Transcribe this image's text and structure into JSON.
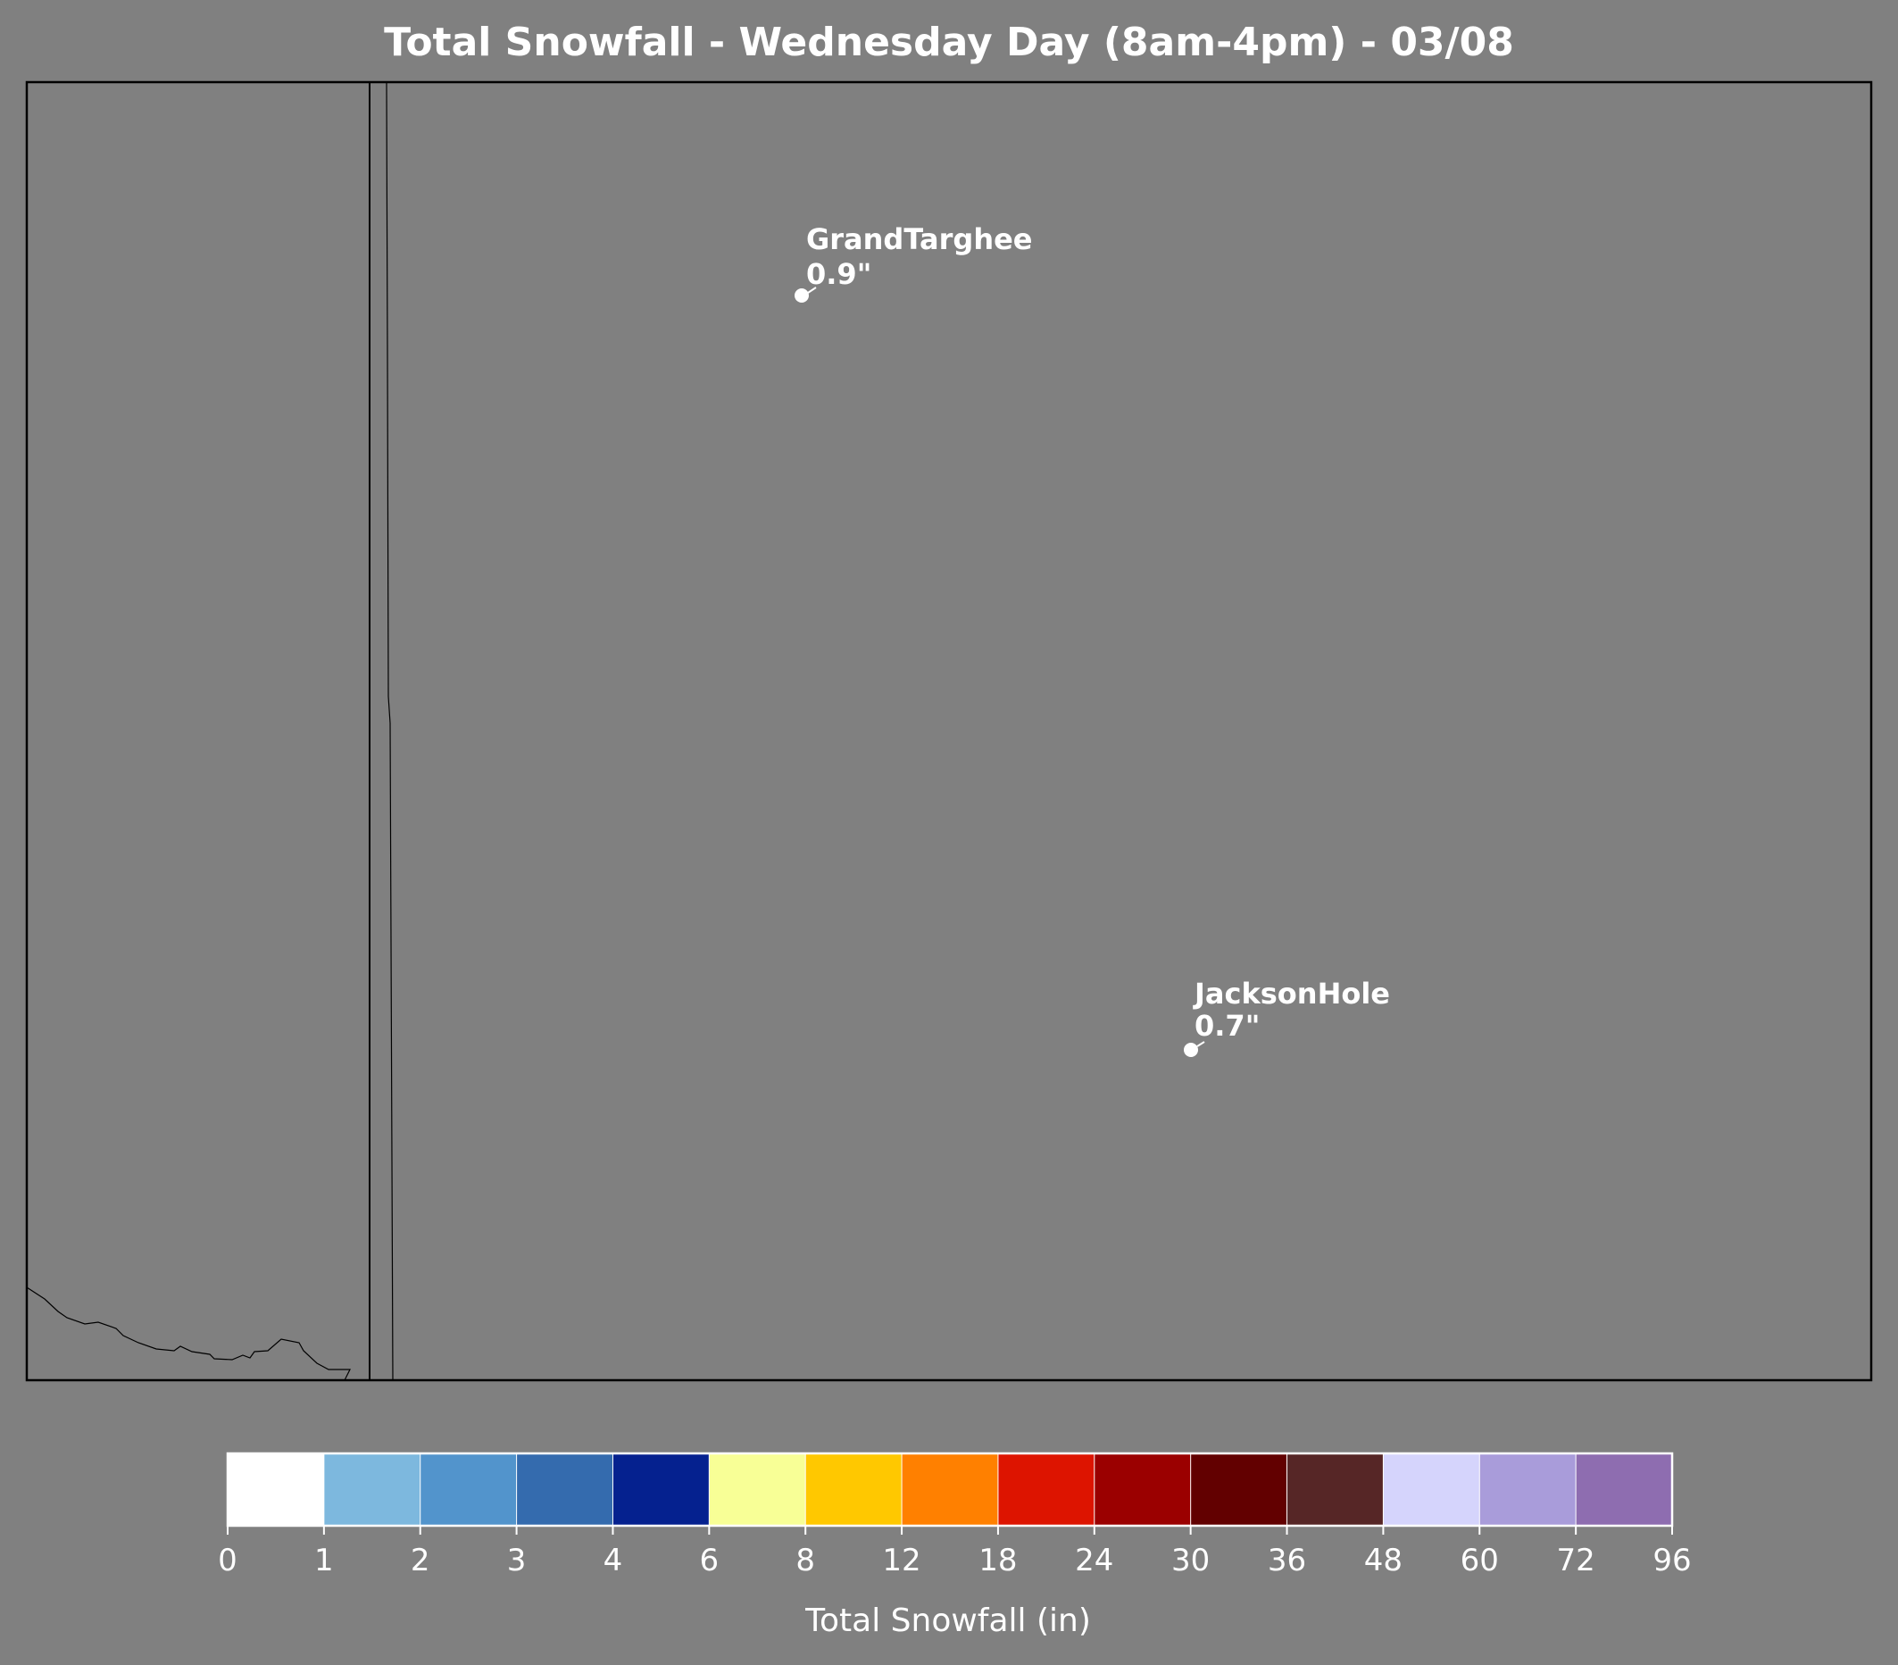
{
  "title": "Total Snowfall - Wednesday Day (8am-4pm) - 03/08",
  "map": {
    "background_color": "#808080",
    "stations": [
      {
        "name": "GrandTarghee",
        "value": "0.9\"",
        "snowfall_in": 0.9
      },
      {
        "name": "JacksonHole",
        "value": "0.7\"",
        "snowfall_in": 0.7
      }
    ]
  },
  "colorbar": {
    "label": "Total Snowfall (in)",
    "ticks": [
      "0",
      "1",
      "2",
      "3",
      "4",
      "6",
      "8",
      "12",
      "18",
      "24",
      "30",
      "36",
      "48",
      "60",
      "72",
      "96"
    ],
    "colors": [
      "#ffffff",
      "#7db8de",
      "#5294cc",
      "#346bae",
      "#05218f",
      "#f8ff96",
      "#ffc800",
      "#ff8000",
      "#dd1400",
      "#9b0000",
      "#620000",
      "#562626",
      "#d5d4fc",
      "#a99cda",
      "#8e6db0"
    ]
  }
}
